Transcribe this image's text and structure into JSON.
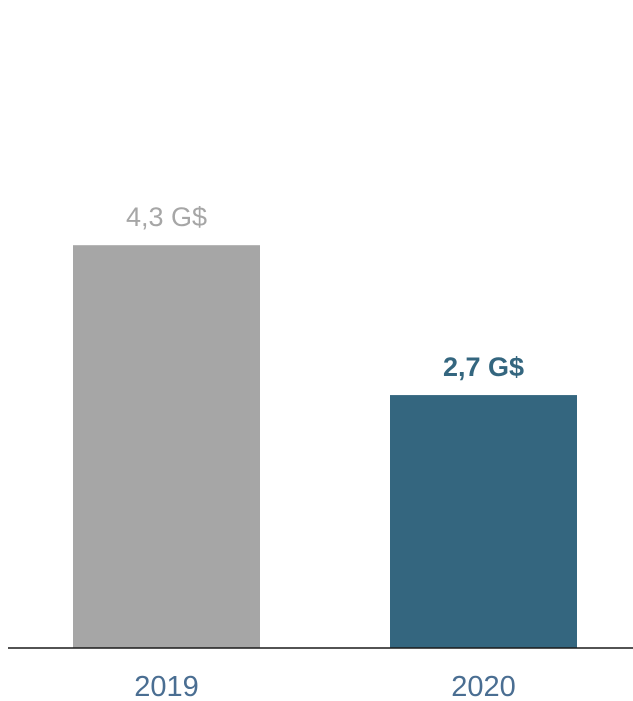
{
  "chart_data": {
    "type": "bar",
    "categories": [
      "2019",
      "2020"
    ],
    "values": [
      4.3,
      2.7
    ],
    "value_labels": [
      "4,3 G$",
      "2,7 G$"
    ],
    "bar_colors": [
      "#a6a6a6",
      "#34667f"
    ],
    "value_label_colors": [
      "#a6a6a6",
      "#34667f"
    ],
    "value_label_bold": [
      false,
      true
    ],
    "tick_label_color": "#4a6e92",
    "axis_color": "#1a1a1a",
    "ylim": [
      0,
      6.8
    ],
    "grid": false,
    "legend": "none"
  }
}
